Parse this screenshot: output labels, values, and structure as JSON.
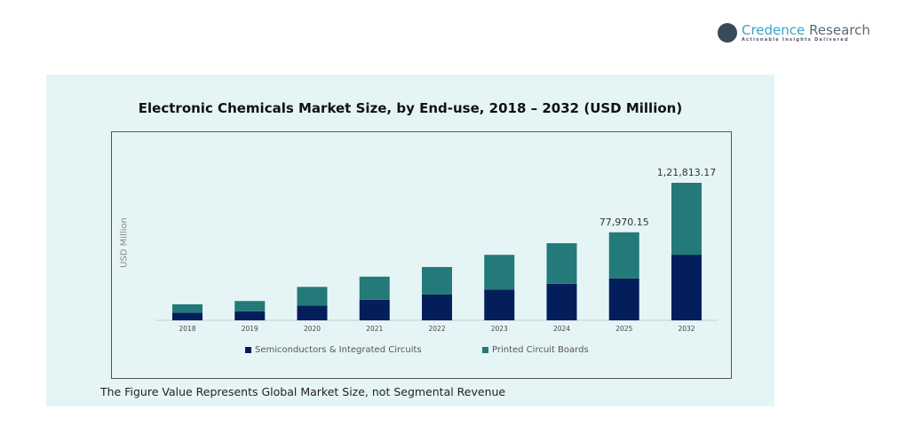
{
  "logo": {
    "name_part1": "Credence",
    "name_part2": " Research",
    "tagline": "Actionable Insights Delivered"
  },
  "footnote": "The Figure Value Represents Global Market Size, not Segmental Revenue",
  "chart_data": {
    "type": "bar",
    "stacked": true,
    "title": "Electronic Chemicals Market Size, by End-use, 2018 – 2032 (USD Million)",
    "xlabel": "",
    "ylabel": "USD Million",
    "categories": [
      "2018",
      "2019",
      "2020",
      "2021",
      "2022",
      "2023",
      "2024",
      "2025",
      "2032"
    ],
    "series": [
      {
        "name": "Semiconductors & Integrated Circuits",
        "color": "#041e5c",
        "values": [
          6800,
          8000,
          13100,
          18200,
          22800,
          27300,
          32400,
          37000,
          58100
        ]
      },
      {
        "name": "Printed Circuit Boards",
        "color": "#237a78",
        "values": [
          7400,
          9100,
          16500,
          20500,
          24400,
          30700,
          35900,
          40970.15,
          63713.17
        ]
      }
    ],
    "data_labels": [
      {
        "category": "2025",
        "text": "77,970.15"
      },
      {
        "category": "2032",
        "text": "1,21,813.17"
      }
    ],
    "ylim": [
      0,
      121813.17
    ],
    "grid": false,
    "legend": "bottom"
  }
}
